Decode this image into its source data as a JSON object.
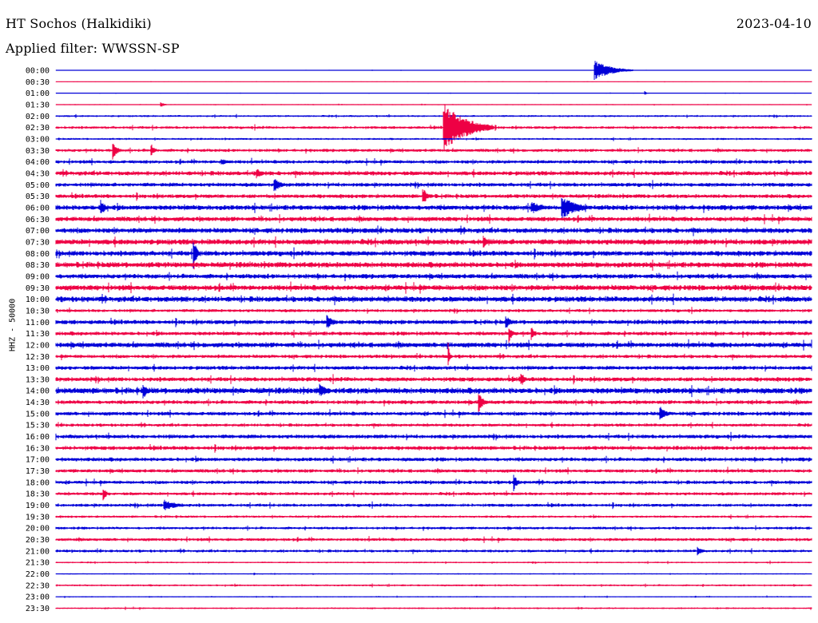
{
  "header": {
    "station": "HT Sochos (Halkidiki)",
    "date": "2023-04-10",
    "filter": "Applied filter: WWSSN-SP"
  },
  "chart_data": {
    "type": "line",
    "title": "HT Sochos (Halkidiki)",
    "ylabel": "HHZ - 50000",
    "grid": false,
    "colors": [
      "#0000d8",
      "#ee0044"
    ],
    "rows": [
      "00:00",
      "00:30",
      "01:00",
      "01:30",
      "02:00",
      "02:30",
      "03:00",
      "03:30",
      "04:00",
      "04:30",
      "05:00",
      "05:30",
      "06:00",
      "06:30",
      "07:00",
      "07:30",
      "08:00",
      "08:30",
      "09:00",
      "09:30",
      "10:00",
      "10:30",
      "11:00",
      "11:30",
      "12:00",
      "12:30",
      "13:00",
      "13:30",
      "14:00",
      "14:30",
      "15:00",
      "15:30",
      "16:00",
      "16:30",
      "17:00",
      "17:30",
      "18:00",
      "18:30",
      "19:00",
      "19:30",
      "20:00",
      "20:30",
      "21:00",
      "21:30",
      "22:00",
      "22:30",
      "23:00",
      "23:30"
    ],
    "noise_level": [
      0.3,
      0.3,
      0.3,
      0.5,
      1.0,
      1.4,
      1.0,
      1.6,
      1.8,
      2.2,
      2.0,
      2.0,
      2.6,
      2.4,
      2.6,
      2.8,
      2.6,
      2.8,
      2.4,
      2.8,
      2.8,
      1.6,
      2.2,
      2.0,
      2.6,
      1.8,
      2.0,
      2.2,
      3.0,
      2.0,
      2.0,
      1.6,
      2.0,
      2.0,
      2.0,
      1.8,
      1.8,
      1.6,
      1.6,
      1.2,
      1.4,
      1.6,
      1.4,
      0.8,
      0.6,
      1.0,
      0.6,
      0.8
    ],
    "events": [
      {
        "row": 0,
        "minute": 21.4,
        "amplitude": 12,
        "duration": 1.5
      },
      {
        "row": 2,
        "minute": 23.4,
        "amplitude": 2,
        "duration": 0.2
      },
      {
        "row": 3,
        "minute": 4.2,
        "amplitude": 3,
        "duration": 0.3
      },
      {
        "row": 5,
        "minute": 15.4,
        "amplitude": 30,
        "duration": 2.0
      },
      {
        "row": 7,
        "minute": 2.3,
        "amplitude": 9,
        "duration": 0.4
      },
      {
        "row": 7,
        "minute": 3.8,
        "amplitude": 8,
        "duration": 0.3
      },
      {
        "row": 8,
        "minute": 6.6,
        "amplitude": 4,
        "duration": 0.8
      },
      {
        "row": 9,
        "minute": 8.0,
        "amplitude": 6,
        "duration": 0.5
      },
      {
        "row": 10,
        "minute": 8.7,
        "amplitude": 8,
        "duration": 0.6
      },
      {
        "row": 11,
        "minute": 14.6,
        "amplitude": 9,
        "duration": 0.5
      },
      {
        "row": 12,
        "minute": 1.8,
        "amplitude": 10,
        "duration": 0.4
      },
      {
        "row": 12,
        "minute": 18.9,
        "amplitude": 8,
        "duration": 1.0
      },
      {
        "row": 12,
        "minute": 20.1,
        "amplitude": 14,
        "duration": 1.4
      },
      {
        "row": 15,
        "minute": 17.0,
        "amplitude": 7,
        "duration": 0.4
      },
      {
        "row": 16,
        "minute": 5.5,
        "amplitude": 14,
        "duration": 0.3
      },
      {
        "row": 20,
        "minute": 5.0,
        "amplitude": 5,
        "duration": 0.4
      },
      {
        "row": 22,
        "minute": 10.8,
        "amplitude": 8,
        "duration": 0.6
      },
      {
        "row": 22,
        "minute": 17.9,
        "amplitude": 7,
        "duration": 0.5
      },
      {
        "row": 23,
        "minute": 18.0,
        "amplitude": 10,
        "duration": 0.3
      },
      {
        "row": 23,
        "minute": 18.9,
        "amplitude": 8,
        "duration": 0.3
      },
      {
        "row": 25,
        "minute": 15.6,
        "amplitude": 12,
        "duration": 0.1
      },
      {
        "row": 27,
        "minute": 18.5,
        "amplitude": 8,
        "duration": 0.3
      },
      {
        "row": 28,
        "minute": 3.5,
        "amplitude": 9,
        "duration": 0.3
      },
      {
        "row": 28,
        "minute": 10.5,
        "amplitude": 8,
        "duration": 0.8
      },
      {
        "row": 29,
        "minute": 16.8,
        "amplitude": 12,
        "duration": 0.4
      },
      {
        "row": 30,
        "minute": 24.0,
        "amplitude": 9,
        "duration": 0.6
      },
      {
        "row": 37,
        "minute": 1.9,
        "amplitude": 7,
        "duration": 0.3
      },
      {
        "row": 36,
        "minute": 18.2,
        "amplitude": 9,
        "duration": 0.3
      },
      {
        "row": 38,
        "minute": 4.3,
        "amplitude": 7,
        "duration": 1.2
      },
      {
        "row": 42,
        "minute": 25.5,
        "amplitude": 5,
        "duration": 0.5
      }
    ]
  }
}
